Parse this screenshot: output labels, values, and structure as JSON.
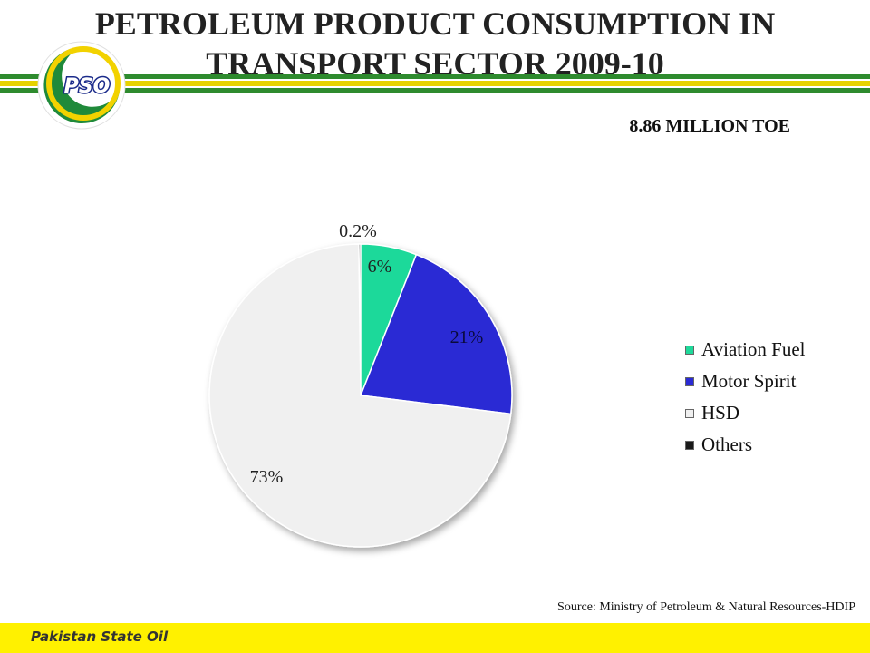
{
  "header": {
    "title_line1": "PETROLEUM PRODUCT CONSUMPTION IN",
    "title_line2": "TRANSPORT SECTOR 2009-10",
    "logo_text": "PSO",
    "stripe_colors": [
      "#2e8b2e",
      "#e6d200",
      "#2e8b2e"
    ]
  },
  "subtitle": "8.86 MILLION TOE",
  "chart_data": {
    "type": "pie",
    "title": "PETROLEUM PRODUCT CONSUMPTION IN TRANSPORT SECTOR 2009-10",
    "slices": [
      {
        "label": "Aviation Fuel",
        "value": 6,
        "display": "6%",
        "color": "#1ed99a"
      },
      {
        "label": "Motor Spirit",
        "value": 21,
        "display": "21%",
        "color": "#2a2ad4"
      },
      {
        "label": "HSD",
        "value": 73,
        "display": "73%",
        "color": "#f0f0f0"
      },
      {
        "label": "Others",
        "value": 0.2,
        "display": "0.2%",
        "color": "#1a1a1a"
      }
    ],
    "legend_position": "right"
  },
  "legend": {
    "items": [
      {
        "label": "Aviation Fuel",
        "color": "#1ed99a"
      },
      {
        "label": "Motor Spirit",
        "color": "#2a2ad4"
      },
      {
        "label": "HSD",
        "color": "#f0f0f0"
      },
      {
        "label": "Others",
        "color": "#1a1a1a"
      }
    ]
  },
  "source": "Source: Ministry of Petroleum  & Natural Resources-HDIP",
  "footer": {
    "text": "Pakistan State Oil",
    "color": "#fff100"
  }
}
